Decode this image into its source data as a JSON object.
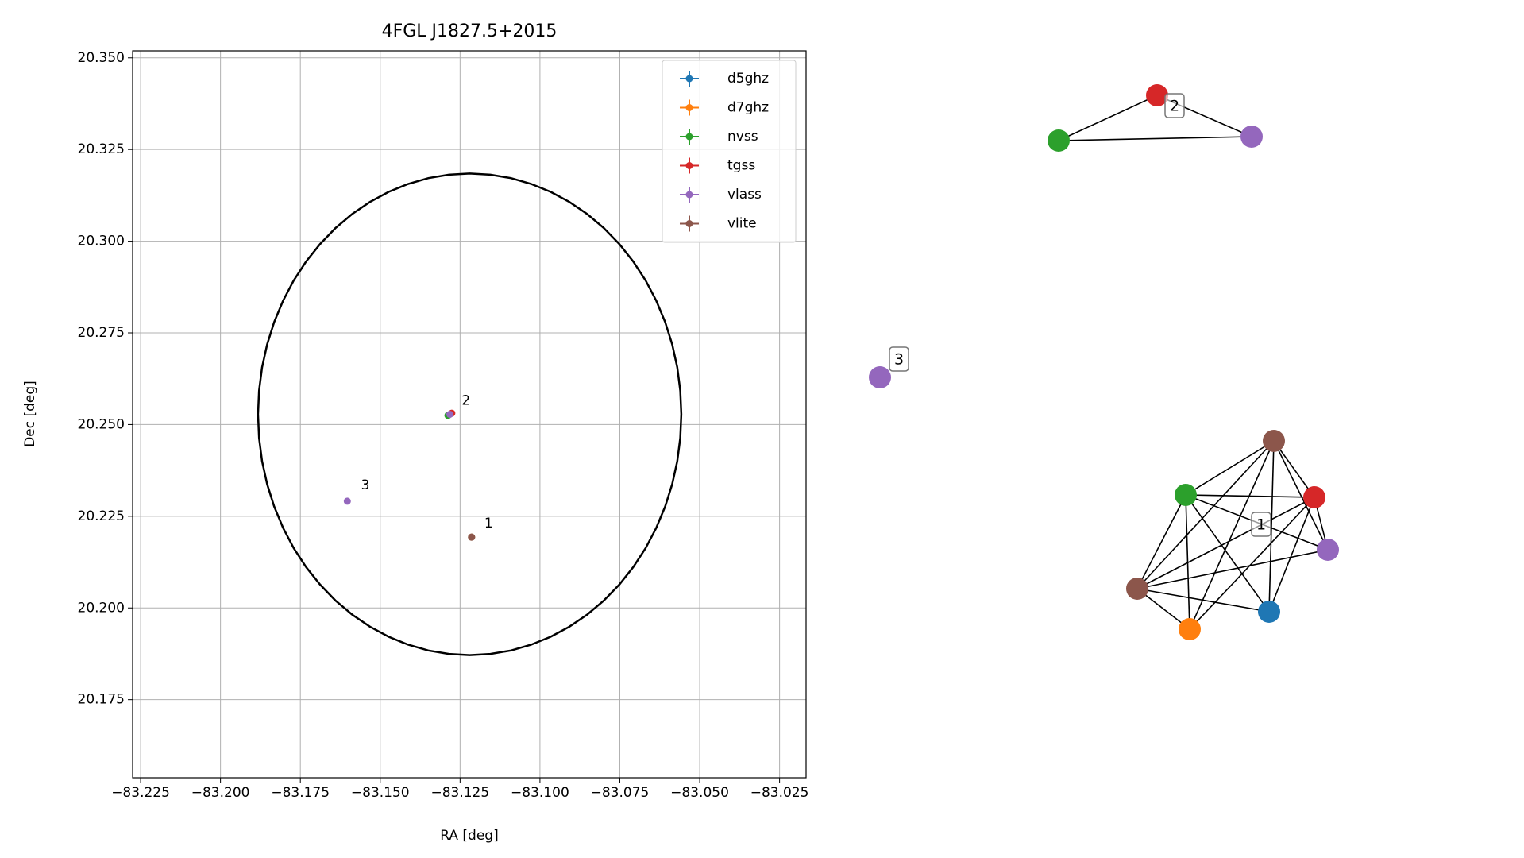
{
  "chart_data": {
    "type": "scatter",
    "title": "4FGL J1827.5+2015",
    "x_label": "RA [deg]",
    "y_label": "Dec [deg]",
    "xlim": [
      -83.2275,
      -83.0167
    ],
    "ylim": [
      20.1537,
      20.3519
    ],
    "xticks": [
      {
        "value": -83.225,
        "label": "−83.225"
      },
      {
        "value": -83.2,
        "label": "−83.200"
      },
      {
        "value": -83.175,
        "label": "−83.175"
      },
      {
        "value": -83.15,
        "label": "−83.150"
      },
      {
        "value": -83.125,
        "label": "−83.125"
      },
      {
        "value": -83.1,
        "label": "−83.100"
      },
      {
        "value": -83.075,
        "label": "−83.075"
      },
      {
        "value": -83.05,
        "label": "−83.050"
      },
      {
        "value": -83.025,
        "label": "−83.025"
      }
    ],
    "yticks": [
      20.175,
      {
        "value": 20.2,
        "label": "20.200"
      },
      20.225,
      {
        "value": 20.25,
        "label": "20.250"
      },
      20.275,
      {
        "value": 20.3,
        "label": "20.300"
      },
      20.325,
      {
        "value": 20.35,
        "label": "20.350"
      }
    ],
    "grid": true,
    "legend": "upper right",
    "series": [
      {
        "name": "d5ghz",
        "color": "#1f77b4",
        "x": [
          -83.1214
        ],
        "y": [
          20.2193
        ]
      },
      {
        "name": "d7ghz",
        "color": "#ff7f0e",
        "x": [
          -83.1214
        ],
        "y": [
          20.2193
        ]
      },
      {
        "name": "nvss",
        "color": "#2ca02c",
        "x": [
          -83.1288
        ],
        "y": [
          20.2525
        ]
      },
      {
        "name": "tgss",
        "color": "#d62728",
        "x": [
          -83.1276
        ],
        "y": [
          20.2531
        ]
      },
      {
        "name": "vlass",
        "color": "#9467bd",
        "x": [
          -83.1603,
          -83.1282
        ],
        "y": [
          20.2291,
          20.2528
        ]
      },
      {
        "name": "vlite",
        "color": "#8c564b",
        "x": [
          -83.1214
        ],
        "y": [
          20.2193
        ]
      }
    ],
    "ellipse": {
      "center": [
        -83.122,
        20.2528
      ],
      "rx": 0.06625,
      "ry": 0.06565,
      "color": "#000000"
    },
    "annotations": [
      {
        "text": "1",
        "x": -83.1174,
        "y": 20.223
      },
      {
        "text": "2",
        "x": -83.1245,
        "y": 20.2565
      },
      {
        "text": "3",
        "x": -83.156,
        "y": 20.2334
      }
    ]
  },
  "network": {
    "nodes": [
      {
        "color": "#d62728"
      },
      {
        "color": "#9467bd"
      },
      {
        "color": "#2ca02c"
      },
      {
        "color": "#9467bd"
      },
      {
        "color": "#8c564b"
      },
      {
        "color": "#2ca02c"
      },
      {
        "color": "#d62728"
      },
      {
        "color": "#9467bd"
      },
      {
        "color": "#8c564b"
      },
      {
        "color": "#ff7f0e"
      },
      {
        "color": "#1f77b4"
      }
    ],
    "edges": [
      [
        2,
        0
      ],
      [
        0,
        1
      ],
      [
        2,
        1
      ],
      [
        4,
        5
      ],
      [
        4,
        6
      ],
      [
        4,
        7
      ],
      [
        4,
        8
      ],
      [
        4,
        9
      ],
      [
        4,
        10
      ],
      [
        5,
        6
      ],
      [
        5,
        7
      ],
      [
        5,
        8
      ],
      [
        5,
        9
      ],
      [
        5,
        10
      ],
      [
        6,
        7
      ],
      [
        6,
        8
      ],
      [
        6,
        9
      ],
      [
        6,
        10
      ],
      [
        7,
        8
      ],
      [
        8,
        9
      ],
      [
        8,
        10
      ]
    ],
    "labels": [
      "1",
      "2",
      "3"
    ]
  }
}
